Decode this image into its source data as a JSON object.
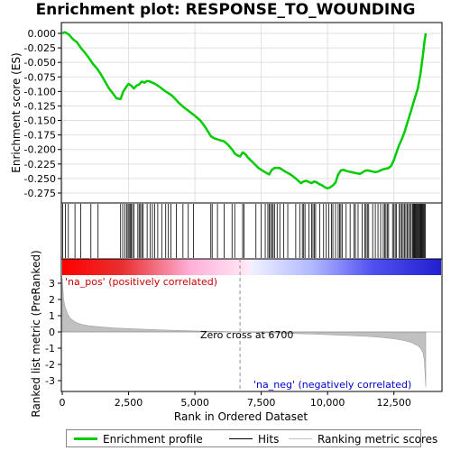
{
  "title": "Enrichment plot: RESPONSE_TO_WOUNDING",
  "chart_data": [
    {
      "type": "line",
      "name": "enrichment-profile",
      "ylabel": "Enrichment score (ES)",
      "xlim": [
        0,
        13700
      ],
      "ylim": [
        -0.29,
        0.01
      ],
      "y_ticks": [
        0.0,
        -0.025,
        -0.05,
        -0.075,
        -0.1,
        -0.125,
        -0.15,
        -0.175,
        -0.2,
        -0.225,
        -0.25,
        -0.275
      ],
      "y_tick_labels": [
        "0.000",
        "-0.025",
        "-0.050",
        "-0.075",
        "-0.100",
        "-0.125",
        "-0.150",
        "-0.175",
        "-0.200",
        "-0.225",
        "-0.250",
        "-0.275"
      ],
      "grid": true,
      "color": "#00cc00",
      "x": [
        0,
        100,
        250,
        400,
        550,
        700,
        850,
        1000,
        1150,
        1300,
        1450,
        1600,
        1750,
        1900,
        2050,
        2200,
        2300,
        2400,
        2500,
        2600,
        2700,
        2800,
        2900,
        3000,
        3100,
        3200,
        3300,
        3400,
        3500,
        3600,
        3700,
        3800,
        3900,
        4000,
        4100,
        4200,
        4400,
        4600,
        4800,
        5000,
        5200,
        5400,
        5600,
        5700,
        5800,
        5950,
        6100,
        6250,
        6400,
        6500,
        6600,
        6700,
        6800,
        6900,
        7000,
        7200,
        7400,
        7600,
        7800,
        7900,
        8000,
        8200,
        8400,
        8600,
        8800,
        9000,
        9100,
        9200,
        9300,
        9400,
        9500,
        9600,
        9700,
        9800,
        9900,
        10000,
        10100,
        10200,
        10300,
        10400,
        10500,
        10600,
        10700,
        10800,
        11000,
        11200,
        11300,
        11400,
        11500,
        11600,
        11700,
        11800,
        11900,
        12000,
        12100,
        12200,
        12300,
        12400,
        12500,
        12600,
        12700,
        12800,
        12900,
        13000,
        13100,
        13200,
        13300,
        13400,
        13500,
        13600,
        13650,
        13700
      ],
      "y": [
        0.0,
        0.002,
        -0.002,
        -0.01,
        -0.015,
        -0.025,
        -0.033,
        -0.042,
        -0.052,
        -0.06,
        -0.07,
        -0.082,
        -0.094,
        -0.103,
        -0.112,
        -0.113,
        -0.1,
        -0.093,
        -0.087,
        -0.09,
        -0.095,
        -0.09,
        -0.088,
        -0.083,
        -0.085,
        -0.082,
        -0.083,
        -0.085,
        -0.087,
        -0.09,
        -0.093,
        -0.097,
        -0.1,
        -0.103,
        -0.106,
        -0.11,
        -0.12,
        -0.128,
        -0.135,
        -0.142,
        -0.15,
        -0.162,
        -0.177,
        -0.18,
        -0.182,
        -0.184,
        -0.186,
        -0.192,
        -0.2,
        -0.207,
        -0.21,
        -0.212,
        -0.205,
        -0.208,
        -0.214,
        -0.223,
        -0.232,
        -0.238,
        -0.243,
        -0.235,
        -0.232,
        -0.232,
        -0.238,
        -0.243,
        -0.25,
        -0.258,
        -0.255,
        -0.254,
        -0.256,
        -0.258,
        -0.255,
        -0.257,
        -0.26,
        -0.262,
        -0.265,
        -0.267,
        -0.265,
        -0.262,
        -0.257,
        -0.243,
        -0.236,
        -0.235,
        -0.237,
        -0.238,
        -0.24,
        -0.242,
        -0.24,
        -0.237,
        -0.236,
        -0.237,
        -0.238,
        -0.239,
        -0.238,
        -0.236,
        -0.234,
        -0.233,
        -0.232,
        -0.228,
        -0.218,
        -0.205,
        -0.192,
        -0.182,
        -0.17,
        -0.155,
        -0.14,
        -0.125,
        -0.11,
        -0.095,
        -0.07,
        -0.035,
        -0.015,
        0.0
      ]
    },
    {
      "type": "area",
      "name": "ranked-list-metric",
      "xlabel": "Rank in Ordered Dataset",
      "ylabel": "Ranked list metric (PreRanked)",
      "xlim": [
        0,
        13700
      ],
      "ylim": [
        -3.6,
        3.6
      ],
      "x_ticks": [
        0,
        2500,
        5000,
        7500,
        10000,
        12500
      ],
      "x_tick_labels": [
        "0",
        "2,500",
        "5,000",
        "7,500",
        "10,000",
        "12,500"
      ],
      "y_ticks": [
        3,
        2,
        1,
        0,
        -1,
        -2,
        -3
      ],
      "y_tick_labels": [
        "3",
        "2",
        "1",
        "0",
        "-1",
        "-2",
        "-3"
      ],
      "color": "#c0c0c0",
      "x": [
        0,
        50,
        100,
        200,
        300,
        500,
        700,
        1000,
        1500,
        2000,
        3000,
        4000,
        5000,
        6000,
        6700,
        7500,
        8500,
        9500,
        10500,
        11500,
        12000,
        12500,
        12800,
        13000,
        13200,
        13400,
        13500,
        13600,
        13650,
        13700
      ],
      "y": [
        3.3,
        2.0,
        1.6,
        1.1,
        0.85,
        0.6,
        0.48,
        0.38,
        0.3,
        0.24,
        0.17,
        0.11,
        0.06,
        0.02,
        0.0,
        -0.04,
        -0.09,
        -0.14,
        -0.2,
        -0.28,
        -0.33,
        -0.42,
        -0.5,
        -0.58,
        -0.68,
        -0.85,
        -1.0,
        -1.3,
        -1.8,
        -3.4
      ]
    }
  ],
  "hits": [
    20,
    120,
    230,
    480,
    700,
    1080,
    1350,
    2200,
    2280,
    2360,
    2430,
    2480,
    2520,
    2560,
    2600,
    2650,
    2700,
    2850,
    2900,
    2950,
    3000,
    3050,
    3200,
    3320,
    3400,
    3480,
    3600,
    3750,
    3900,
    4000,
    4100,
    4300,
    4550,
    4750,
    4950,
    5600,
    5650,
    5850,
    6100,
    6400,
    6500,
    6800,
    6850,
    7300,
    7500,
    7650,
    7750,
    7800,
    7850,
    7900,
    7950,
    8000,
    8100,
    8200,
    8350,
    8500,
    8800,
    8950,
    9050,
    9100,
    9150,
    9300,
    9400,
    9450,
    9500,
    9550,
    9700,
    9850,
    9950,
    10050,
    10150,
    10200,
    10300,
    10400,
    10450,
    10500,
    10550,
    10700,
    10850,
    11000,
    11050,
    11150,
    11300,
    11400,
    11450,
    11500,
    11550,
    11700,
    11800,
    11900,
    12000,
    12100,
    12150,
    12200,
    12250,
    12300,
    12450,
    12500,
    12550,
    12600,
    12700,
    12750,
    12800,
    12850,
    12900,
    12950,
    13000,
    13050,
    13100,
    13150,
    13200,
    13230,
    13260,
    13290,
    13320,
    13350,
    13380,
    13410,
    13440,
    13470,
    13500,
    13530,
    13560,
    13590,
    13620,
    13650,
    13680
  ],
  "annotations": {
    "pos_label": "'na_pos' (positively correlated)",
    "neg_label": "'na_neg' (negatively correlated)",
    "zero_cross": "Zero cross at 6700",
    "zero_cross_x": 6700
  },
  "legend": {
    "items": [
      {
        "label": "Enrichment profile",
        "color": "#00cc00"
      },
      {
        "label": "Hits",
        "color": "#000000"
      },
      {
        "label": "Ranking metric scores",
        "color": "#c0c0c0"
      }
    ]
  }
}
